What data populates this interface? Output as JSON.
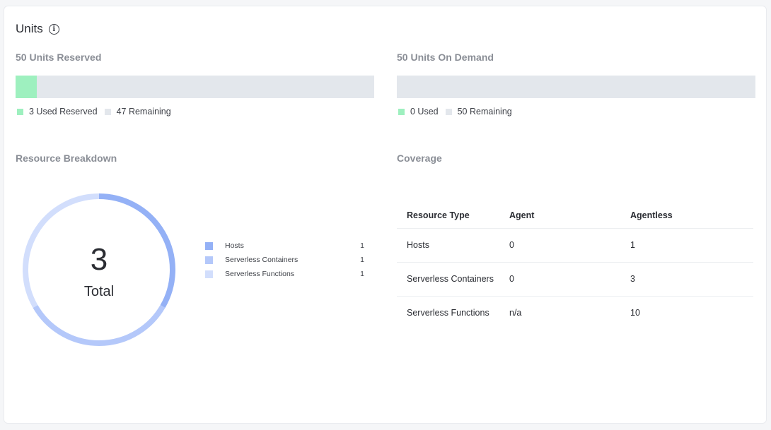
{
  "card": {
    "title": "Units",
    "info_icon": "info-icon"
  },
  "reserved": {
    "title": "50 Units Reserved",
    "total": 50,
    "used": 3,
    "used_fraction": 0.06,
    "legend_used": "3 Used Reserved",
    "legend_remaining": "47 Remaining"
  },
  "on_demand": {
    "title": "50 Units On Demand",
    "total": 50,
    "used": 0,
    "used_fraction": 0,
    "legend_used": "0 Used",
    "legend_remaining": "50 Remaining"
  },
  "colors": {
    "used": "#9ef0bf",
    "remaining": "#e3e7ec",
    "hosts": "#94b1f6",
    "containers": "#b4c8fa",
    "functions": "#d2defc"
  },
  "breakdown": {
    "title": "Resource Breakdown",
    "total_value": "3",
    "total_label": "Total",
    "items": [
      {
        "name": "Hosts",
        "count": "1",
        "value": 1
      },
      {
        "name": "Serverless Containers",
        "count": "1",
        "value": 1
      },
      {
        "name": "Serverless Functions",
        "count": "1",
        "value": 1
      }
    ]
  },
  "coverage": {
    "title": "Coverage",
    "headers": [
      "Resource Type",
      "Agent",
      "Agentless"
    ],
    "rows": [
      [
        "Hosts",
        "0",
        "1"
      ],
      [
        "Serverless Containers",
        "0",
        "3"
      ],
      [
        "Serverless Functions",
        "n/a",
        "10"
      ]
    ]
  }
}
